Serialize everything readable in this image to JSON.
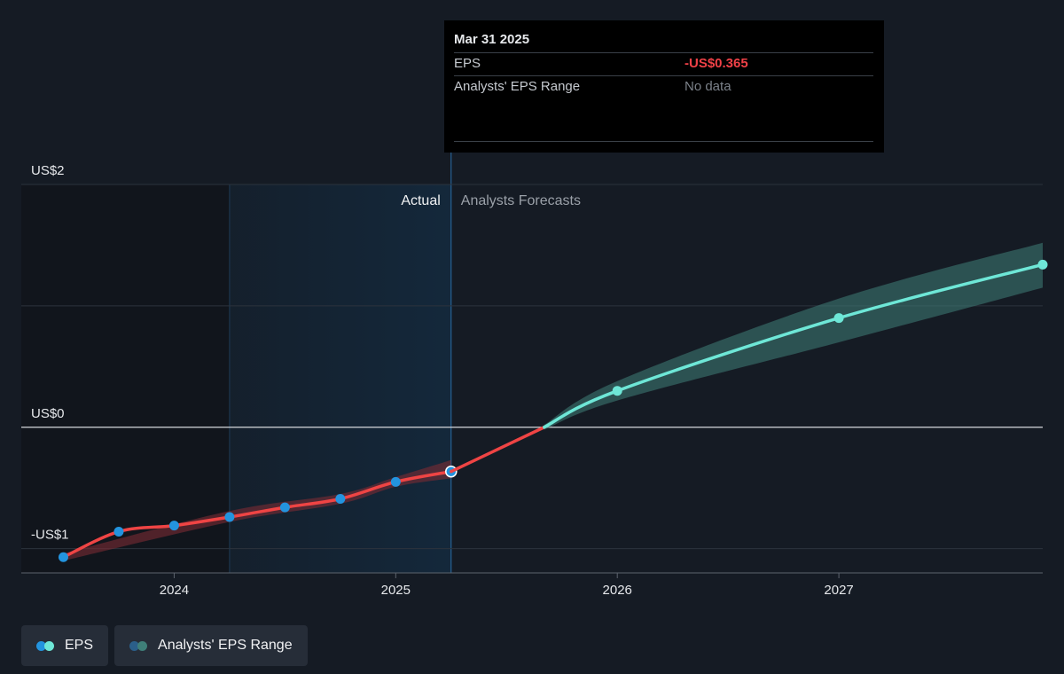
{
  "colors": {
    "background": "#151b24",
    "eps_past": "#ef4444",
    "eps_forecast": "#6ee7d7",
    "point_past": "#2394df",
    "band_forecast": "#3f7f79",
    "band_past": "#7b2b34",
    "actual_region": "#14283b",
    "negative_value": "#f04147"
  },
  "tooltip": {
    "date": "Mar 31 2025",
    "rows": [
      {
        "label": "EPS",
        "value": "-US$0.365"
      },
      {
        "label": "Analysts' EPS Range",
        "value": "No data"
      }
    ]
  },
  "chart_data": {
    "type": "line",
    "y_ticks": [
      {
        "value": 2,
        "label": "US$2"
      },
      {
        "value": 0,
        "label": "US$0"
      },
      {
        "value": -1,
        "label": "-US$1"
      }
    ],
    "x_ticks": [
      {
        "value": 2024.0,
        "label": "2024"
      },
      {
        "value": 2025.0,
        "label": "2025"
      },
      {
        "value": 2026.0,
        "label": "2026"
      },
      {
        "value": 2027.0,
        "label": "2027"
      }
    ],
    "ylim": [
      -1.2,
      2.0
    ],
    "xlim": [
      2023.31,
      2027.92
    ],
    "region_labels": {
      "actual": "Actual",
      "forecast": "Analysts Forecasts"
    },
    "actual_region": [
      2024.25,
      2025.25
    ],
    "series": [
      {
        "name": "EPS",
        "segment": "actual",
        "x": [
          2023.5,
          2023.75,
          2024.0,
          2024.25,
          2024.5,
          2024.75,
          2025.0,
          2025.25
        ],
        "y": [
          -1.07,
          -0.86,
          -0.81,
          -0.74,
          -0.66,
          -0.59,
          -0.45,
          -0.365
        ]
      },
      {
        "name": "EPS",
        "segment": "forecast",
        "x": [
          2025.25,
          2025.67,
          2026.0,
          2027.0,
          2027.92
        ],
        "y": [
          -0.365,
          0.0,
          0.3,
          0.9,
          1.34
        ]
      },
      {
        "name": "Analysts' EPS Range",
        "segment": "actual",
        "x": [
          2023.5,
          2024.25,
          2024.75,
          2025.0,
          2025.25
        ],
        "low": [
          -1.1,
          -0.78,
          -0.63,
          -0.49,
          -0.42
        ],
        "high": [
          -1.04,
          -0.69,
          -0.55,
          -0.41,
          -0.27
        ]
      },
      {
        "name": "Analysts' EPS Range",
        "segment": "forecast",
        "x": [
          2025.67,
          2026.0,
          2027.0,
          2027.92
        ],
        "low": [
          -0.02,
          0.22,
          0.7,
          1.15
        ],
        "high": [
          0.02,
          0.38,
          1.06,
          1.52
        ]
      }
    ]
  },
  "legend": [
    {
      "label": "EPS",
      "dot_colors": [
        "#2394df",
        "#6ee7d7"
      ]
    },
    {
      "label": "Analysts' EPS Range",
      "dot_colors": [
        "#2b5f8a",
        "#3f7f79"
      ]
    }
  ]
}
